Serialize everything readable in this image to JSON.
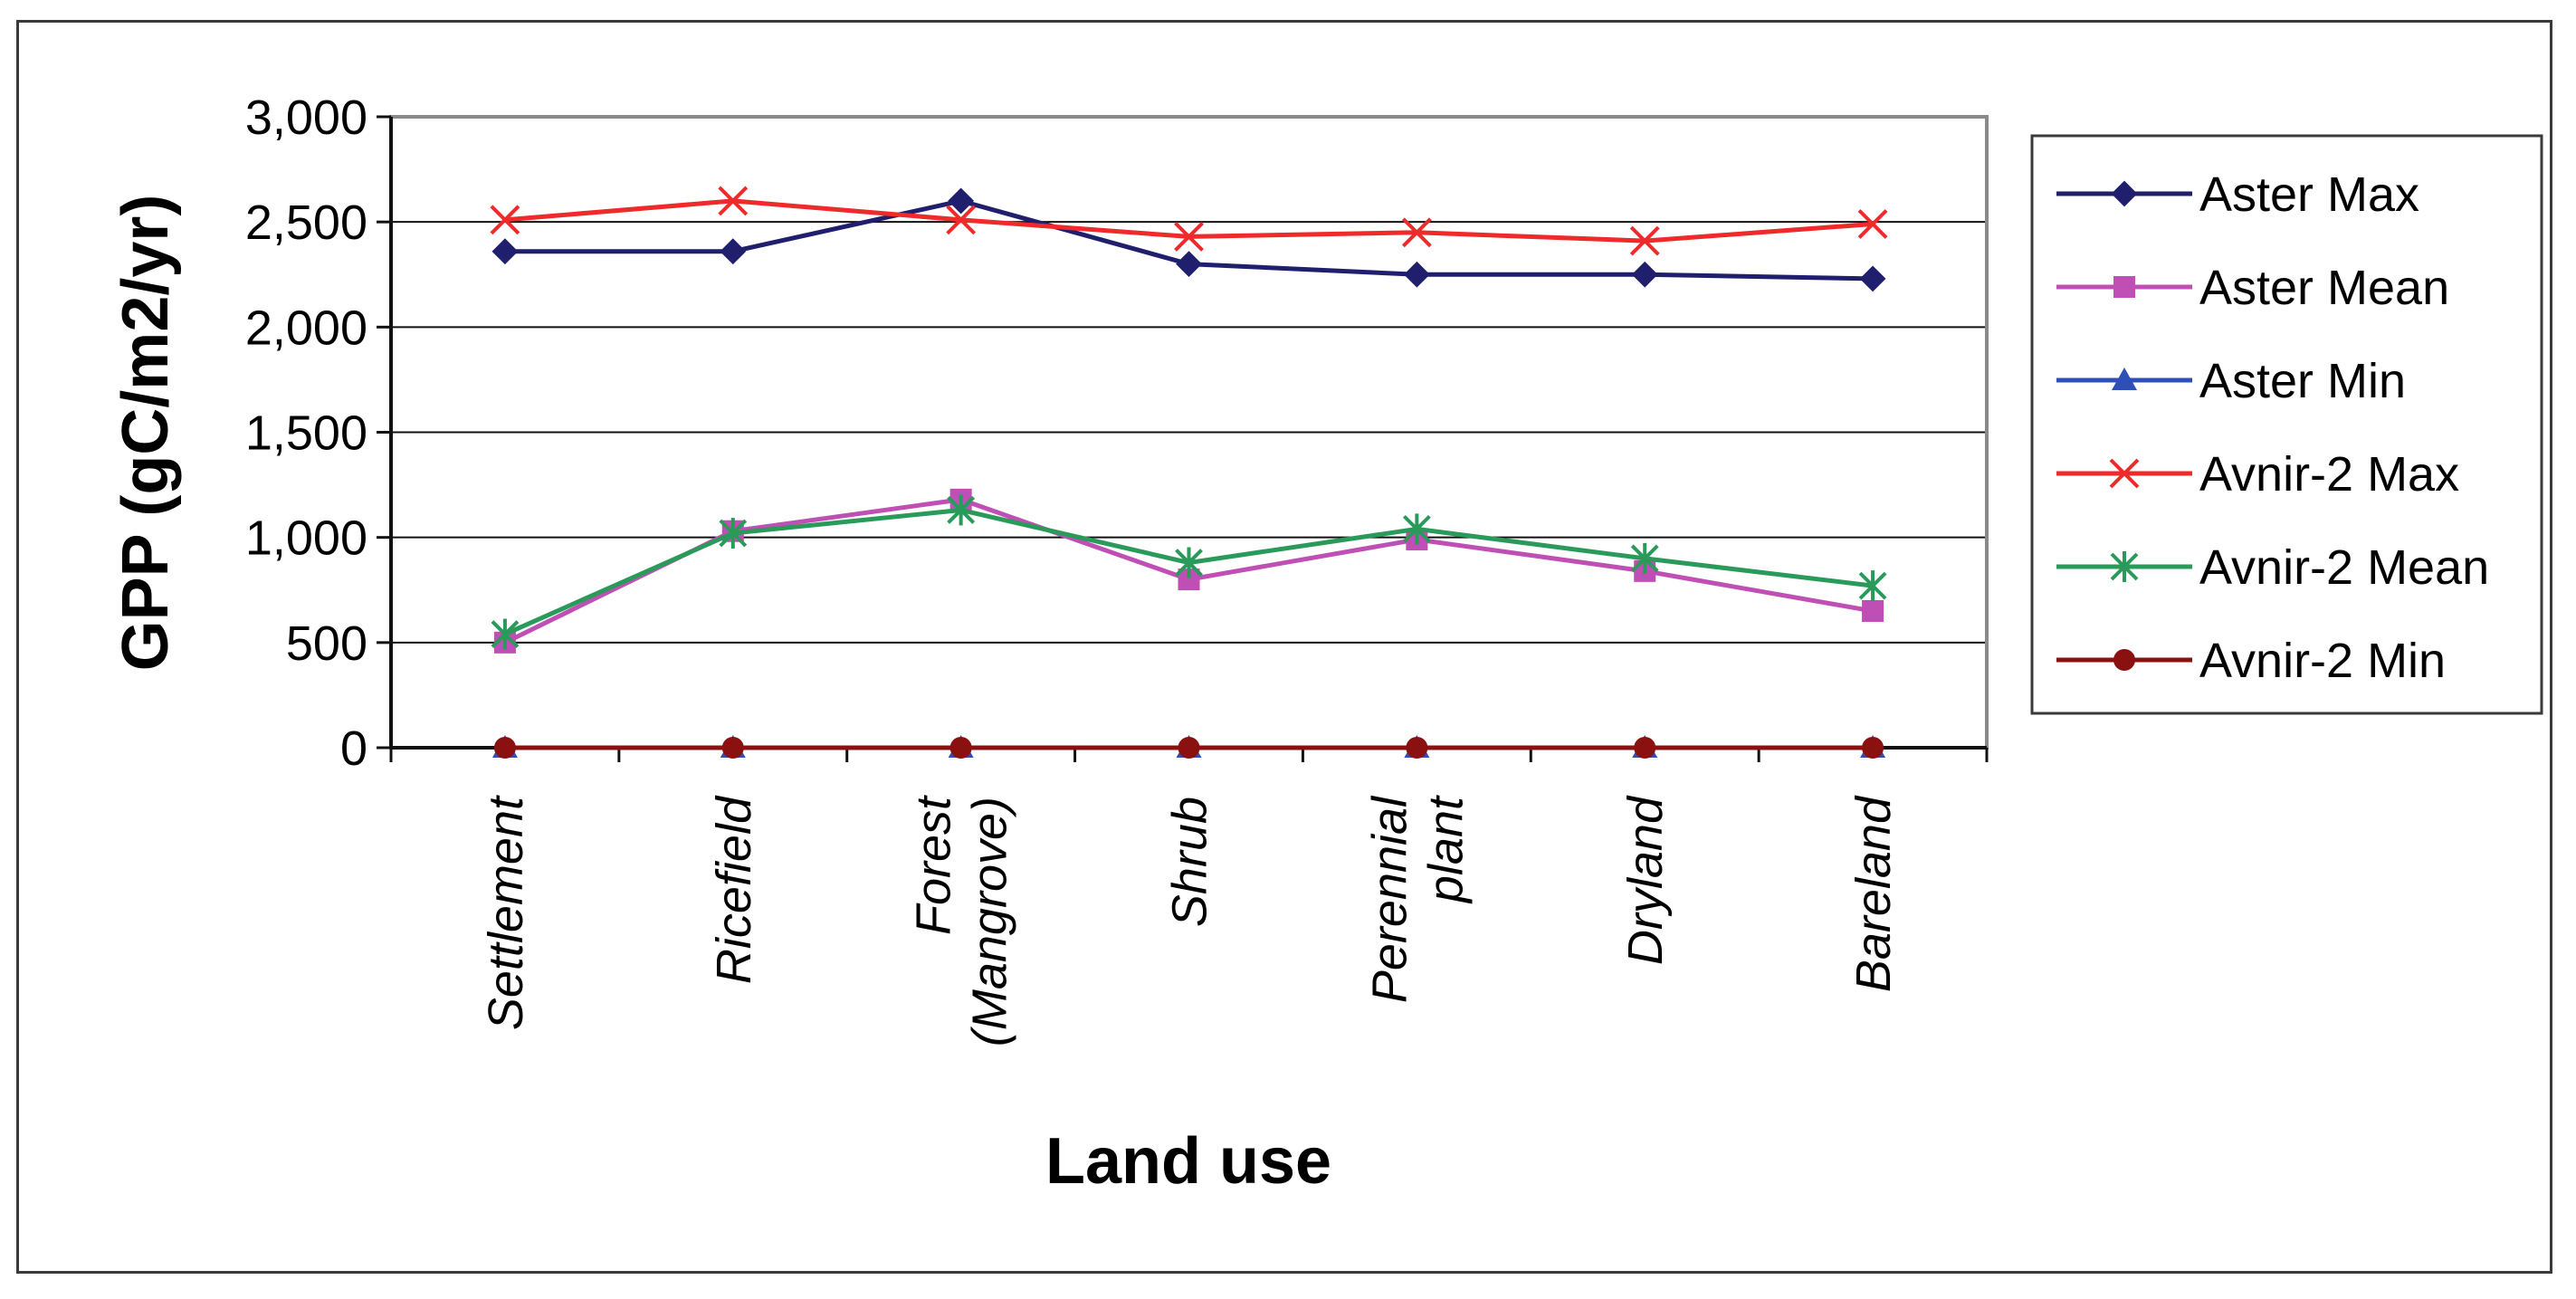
{
  "chart_data": {
    "type": "line",
    "title": "",
    "xlabel": "Land use",
    "ylabel": "GPP (gC/m2/yr)",
    "ylim": [
      0,
      3000
    ],
    "yticks": [
      0,
      500,
      1000,
      1500,
      2000,
      2500,
      3000
    ],
    "ytick_labels": [
      "0",
      "500",
      "1,000",
      "1,500",
      "2,000",
      "2,500",
      "3,000"
    ],
    "categories": [
      [
        "Settlement"
      ],
      [
        "Ricefield"
      ],
      [
        "Forest",
        "(Mangrove)"
      ],
      [
        "Shrub"
      ],
      [
        "Perennial",
        "plant"
      ],
      [
        "Dryland"
      ],
      [
        "Bareland"
      ]
    ],
    "grid": "horizontal",
    "legend_position": "right",
    "series": [
      {
        "name": "Aster Max",
        "color": "#1f1f6e",
        "marker": "diamond",
        "values": [
          2360,
          2360,
          2600,
          2300,
          2250,
          2250,
          2230
        ]
      },
      {
        "name": "Aster Mean",
        "color": "#bf4fb4",
        "marker": "square",
        "values": [
          500,
          1030,
          1180,
          800,
          990,
          840,
          650
        ]
      },
      {
        "name": "Aster Min",
        "color": "#2f4fb8",
        "marker": "triangle",
        "values": [
          0,
          0,
          0,
          0,
          0,
          0,
          0
        ]
      },
      {
        "name": "Avnir-2 Max",
        "color": "#ee2a2a",
        "marker": "x",
        "values": [
          2510,
          2600,
          2510,
          2430,
          2450,
          2410,
          2490
        ]
      },
      {
        "name": "Avnir-2 Mean",
        "color": "#2a9a5a",
        "marker": "star",
        "values": [
          540,
          1020,
          1130,
          880,
          1040,
          900,
          770
        ]
      },
      {
        "name": "Avnir-2 Min",
        "color": "#8b1010",
        "marker": "circle",
        "values": [
          0,
          0,
          0,
          0,
          0,
          0,
          0
        ]
      }
    ]
  }
}
